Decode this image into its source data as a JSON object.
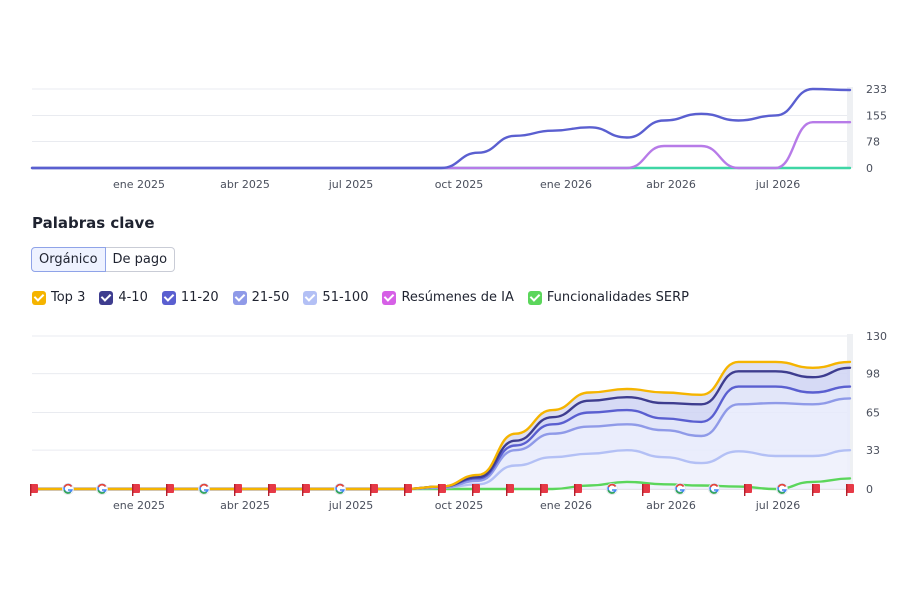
{
  "section": {
    "title": "Palabras clave"
  },
  "tabs": [
    {
      "label": "Orgánico",
      "active": true
    },
    {
      "label": "De pago",
      "active": false
    }
  ],
  "legend": [
    {
      "label": "Top 3",
      "color": "#f5b400"
    },
    {
      "label": "4-10",
      "color": "#3e3d8f"
    },
    {
      "label": "11-20",
      "color": "#5a5fd0"
    },
    {
      "label": "21-50",
      "color": "#8f9ae8"
    },
    {
      "label": "51-100",
      "color": "#b3c0f5"
    },
    {
      "label": "Resúmenes de IA",
      "color": "#d660e6"
    },
    {
      "label": "Funcionalidades SERP",
      "color": "#5bd65b"
    }
  ],
  "chart_data": [
    {
      "type": "line",
      "x_tick_labels": [
        "ene 2025",
        "abr 2025",
        "jul 2025",
        "oct 2025",
        "ene 2026",
        "abr 2026",
        "jul 2026"
      ],
      "y_tick_labels": [
        "233",
        "155",
        "78",
        "0"
      ],
      "ylim": [
        0,
        233
      ],
      "grid": true,
      "x": [
        "2024-11",
        "2024-12",
        "2025-01",
        "2025-02",
        "2025-03",
        "2025-04",
        "2025-05",
        "2025-06",
        "2025-07",
        "2025-08",
        "2025-09",
        "2025-10",
        "2025-11",
        "2025-12",
        "2026-01",
        "2026-02",
        "2026-03",
        "2026-04",
        "2026-05",
        "2026-06",
        "2026-07",
        "2026-08",
        "2026-09"
      ],
      "series": [
        {
          "color": "#5a5fd0",
          "values": [
            0,
            0,
            0,
            0,
            0,
            0,
            0,
            0,
            0,
            0,
            0,
            0,
            45,
            95,
            110,
            120,
            90,
            140,
            160,
            140,
            155,
            233,
            230
          ]
        },
        {
          "color": "#b77be8",
          "values": [
            0,
            0,
            0,
            0,
            0,
            0,
            0,
            0,
            0,
            0,
            0,
            0,
            0,
            0,
            0,
            0,
            0,
            65,
            65,
            0,
            0,
            135,
            135
          ]
        },
        {
          "color": "#3ed6a5",
          "values": [
            0,
            0,
            0,
            0,
            0,
            0,
            0,
            0,
            0,
            0,
            0,
            0,
            0,
            0,
            0,
            0,
            0,
            0,
            0,
            0,
            0,
            0,
            0
          ]
        }
      ]
    },
    {
      "type": "area",
      "x_tick_labels": [
        "ene 2025",
        "abr 2025",
        "jul 2025",
        "oct 2025",
        "ene 2026",
        "abr 2026",
        "jul 2026"
      ],
      "y_tick_labels": [
        "130",
        "98",
        "65",
        "33",
        "0"
      ],
      "ylim": [
        0,
        130
      ],
      "grid": true,
      "x": [
        "2024-11",
        "2024-12",
        "2025-01",
        "2025-02",
        "2025-03",
        "2025-04",
        "2025-05",
        "2025-06",
        "2025-07",
        "2025-08",
        "2025-09",
        "2025-10",
        "2025-11",
        "2025-12",
        "2026-01",
        "2026-02",
        "2026-03",
        "2026-04",
        "2026-05",
        "2026-06",
        "2026-07",
        "2026-08",
        "2026-09"
      ],
      "series": [
        {
          "color": "#f5b400",
          "values": [
            0,
            0,
            0,
            0,
            0,
            0,
            0,
            0,
            0,
            0,
            0,
            2,
            12,
            47,
            67,
            82,
            85,
            82,
            80,
            108,
            108,
            103,
            108
          ]
        },
        {
          "color": "#3e3d8f",
          "values": [
            0,
            0,
            0,
            0,
            0,
            0,
            0,
            0,
            0,
            0,
            0,
            2,
            10,
            41,
            61,
            75,
            78,
            73,
            72,
            100,
            100,
            95,
            103
          ]
        },
        {
          "color": "#5a5fd0",
          "values": [
            0,
            0,
            0,
            0,
            0,
            0,
            0,
            0,
            0,
            0,
            0,
            2,
            9,
            37,
            55,
            65,
            67,
            60,
            57,
            87,
            87,
            82,
            87
          ]
        },
        {
          "color": "#8f9ae8",
          "values": [
            0,
            0,
            0,
            0,
            0,
            0,
            0,
            0,
            0,
            0,
            0,
            1,
            7,
            33,
            47,
            53,
            55,
            50,
            45,
            72,
            73,
            72,
            77
          ]
        },
        {
          "color": "#b3c0f5",
          "values": [
            0,
            0,
            0,
            0,
            0,
            0,
            0,
            0,
            0,
            0,
            0,
            1,
            4,
            20,
            27,
            30,
            33,
            27,
            22,
            32,
            28,
            28,
            33
          ]
        },
        {
          "color": "#5bd65b",
          "values": [
            0,
            0,
            0,
            0,
            0,
            0,
            0,
            0,
            0,
            0,
            0,
            0,
            0,
            0,
            0,
            3,
            6,
            4,
            3,
            2,
            0,
            6,
            9
          ]
        }
      ],
      "event_markers": [
        "flag",
        "google",
        "google",
        "flag",
        "flag",
        "google",
        "flag",
        "flag",
        "flag",
        "google",
        "flag",
        "flag",
        "flag",
        "flag",
        "flag",
        "flag",
        "flag",
        "google",
        "flag",
        "google",
        "google",
        "flag",
        "google",
        "flag",
        "flag"
      ]
    }
  ]
}
